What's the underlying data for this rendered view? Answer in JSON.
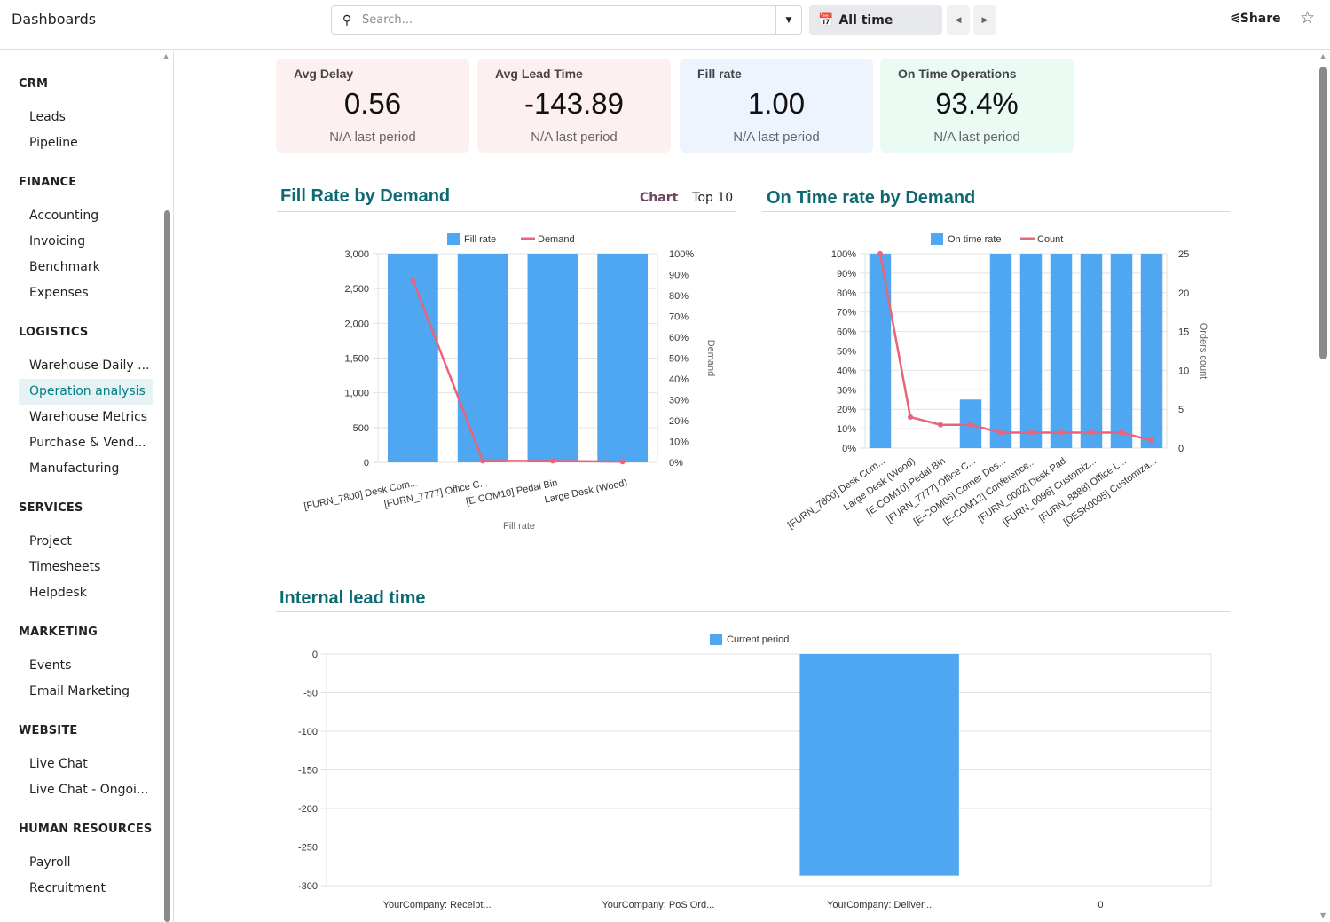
{
  "app": {
    "title": "Dashboards"
  },
  "search": {
    "placeholder": "Search..."
  },
  "period": {
    "label": "All time"
  },
  "header": {
    "share_label": "Share"
  },
  "sidebar": {
    "groups": [
      {
        "title": "CRM",
        "items": [
          "Leads",
          "Pipeline"
        ]
      },
      {
        "title": "FINANCE",
        "items": [
          "Accounting",
          "Invoicing",
          "Benchmark",
          "Expenses"
        ]
      },
      {
        "title": "LOGISTICS",
        "items": [
          "Warehouse Daily ...",
          "Operation analysis",
          "Warehouse Metrics",
          "Purchase & Vend...",
          "Manufacturing"
        ]
      },
      {
        "title": "SERVICES",
        "items": [
          "Project",
          "Timesheets",
          "Helpdesk"
        ]
      },
      {
        "title": "MARKETING",
        "items": [
          "Events",
          "Email Marketing"
        ]
      },
      {
        "title": "WEBSITE",
        "items": [
          "Live Chat",
          "Live Chat - Ongoi..."
        ]
      },
      {
        "title": "HUMAN RESOURCES",
        "items": [
          "Payroll",
          "Recruitment"
        ]
      }
    ],
    "active_item": "Operation analysis"
  },
  "kpis": [
    {
      "label": "Avg  Delay",
      "value": "0.56",
      "sub": "N/A last period",
      "bg": "#fdf0f0"
    },
    {
      "label": "Avg Lead Time",
      "value": "-143.89",
      "sub": "N/A last period",
      "bg": "#fdf0f0"
    },
    {
      "label": "Fill rate",
      "value": "1.00",
      "sub": "N/A last period",
      "bg": "#eef4fe"
    },
    {
      "label": "On Time Operations",
      "value": "93.4%",
      "sub": "N/A last period",
      "bg": "#eafbf3"
    }
  ],
  "colors": {
    "bar": "#4fa7f1",
    "line": "#e8647a",
    "title": "#0e6a72"
  },
  "fill_chart_tabs": {
    "chart": "Chart",
    "top": "Top 10"
  },
  "chart_data": [
    {
      "type": "bar",
      "title": "Fill Rate by Demand",
      "categories": [
        "[FURN_7800] Desk Com...",
        "[FURN_7777] Office C...",
        "[E-COM10] Pedal Bin",
        "Large Desk (Wood)"
      ],
      "series": [
        {
          "name": "Fill rate",
          "type": "bar",
          "axis": "right",
          "values": [
            1.0,
            1.0,
            1.0,
            1.0
          ]
        },
        {
          "name": "Demand",
          "type": "line",
          "axis": "left",
          "values": [
            2620,
            20,
            20,
            10
          ]
        }
      ],
      "left_axis": {
        "ylim": [
          0,
          3000
        ],
        "ticks": [
          "0",
          "500",
          "1,000",
          "1,500",
          "2,000",
          "2,500",
          "3,000"
        ]
      },
      "right_axis": {
        "ylim": [
          0,
          1
        ],
        "ticks": [
          "0%",
          "10%",
          "20%",
          "30%",
          "40%",
          "50%",
          "60%",
          "70%",
          "80%",
          "90%",
          "100%"
        ],
        "label": "Demand"
      },
      "xlabel": "Fill rate",
      "legend": "top",
      "grid": true
    },
    {
      "type": "bar",
      "title": "On Time rate by Demand",
      "categories": [
        "[FURN_7800] Desk Com...",
        "Large Desk (Wood)",
        "[E-COM10] Pedal Bin",
        "[FURN_7777] Office C...",
        "[E-COM06] Corner Des...",
        "[E-COM12] Conference...",
        "[FURN_0002] Desk Pad",
        "[FURN_0096] Customiz...",
        "[FURN_8888] Office L...",
        "[DESK0005] Customiza..."
      ],
      "series": [
        {
          "name": "On time rate",
          "type": "bar",
          "axis": "left",
          "values": [
            1.0,
            0,
            0,
            0.25,
            1.0,
            1.0,
            1.0,
            1.0,
            1.0,
            1.0
          ]
        },
        {
          "name": "Count",
          "type": "line",
          "axis": "right",
          "values": [
            25,
            4,
            3,
            3,
            2,
            2,
            2,
            2,
            2,
            1
          ]
        }
      ],
      "left_axis": {
        "ylim": [
          0,
          1
        ],
        "ticks": [
          "0%",
          "10%",
          "20%",
          "30%",
          "40%",
          "50%",
          "60%",
          "70%",
          "80%",
          "90%",
          "100%"
        ]
      },
      "right_axis": {
        "ylim": [
          0,
          25
        ],
        "ticks": [
          "0",
          "5",
          "10",
          "15",
          "20",
          "25"
        ],
        "label": "Orders count"
      },
      "legend": "top",
      "grid": true
    },
    {
      "type": "bar",
      "title": "Internal lead time",
      "categories": [
        "YourCompany: Receipt...",
        "YourCompany: PoS Ord...",
        "YourCompany: Deliver...",
        "0"
      ],
      "series": [
        {
          "name": "Current period",
          "type": "bar",
          "axis": "left",
          "values": [
            0,
            0,
            -287,
            0
          ]
        }
      ],
      "left_axis": {
        "ylim": [
          -300,
          0
        ],
        "ticks": [
          "-300",
          "-250",
          "-200",
          "-150",
          "-100",
          "-50",
          "0"
        ]
      },
      "legend": "top",
      "grid": true
    }
  ]
}
